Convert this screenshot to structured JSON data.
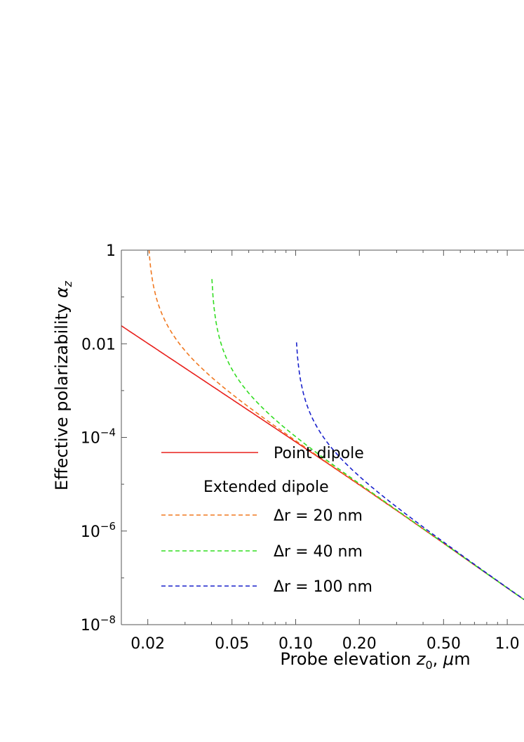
{
  "chart_data": {
    "type": "line",
    "xscale": "log",
    "yscale": "log",
    "xlim": [
      0.015,
      1.2
    ],
    "ylim": [
      1e-08,
      1
    ],
    "xlabel": {
      "prefix": "Probe elevation ",
      "var": "z",
      "sub": "0",
      "mid": ", ",
      "greek": "μ",
      "suffix": "m"
    },
    "ylabel": {
      "prefix": "Effective polarizability ",
      "var": "α",
      "sub": "z"
    },
    "x_ticks": [
      {
        "value": 0.02,
        "label": "0.02"
      },
      {
        "value": 0.05,
        "label": "0.05"
      },
      {
        "value": 0.1,
        "label": "0.10"
      },
      {
        "value": 0.2,
        "label": "0.20"
      },
      {
        "value": 0.5,
        "label": "0.50"
      },
      {
        "value": 1.0,
        "label": "1.0"
      }
    ],
    "y_ticks": [
      {
        "value": 1,
        "base": "1",
        "exp": ""
      },
      {
        "value": 0.01,
        "base": "0.01",
        "exp": ""
      },
      {
        "value": 0.0001,
        "base": "10",
        "exp": "−4"
      },
      {
        "value": 1e-06,
        "base": "10",
        "exp": "−6"
      },
      {
        "value": 1e-08,
        "base": "10",
        "exp": "−8"
      }
    ],
    "legend": {
      "header": "Extended dipole",
      "entries": [
        {
          "label": "Point dipole",
          "series": 0
        },
        {
          "label": "Δr = 20 nm",
          "series": 1
        },
        {
          "label": "Δr = 40 nm",
          "series": 2
        },
        {
          "label": "Δr = 100 nm",
          "series": 3
        }
      ]
    },
    "series": [
      {
        "label": "Point dipole",
        "color": "#e8201c",
        "dash": false,
        "dr": 0
      },
      {
        "label": "Δr = 20 nm",
        "color": "#f07820",
        "dash": true,
        "dr": 0.02
      },
      {
        "label": "Δr = 40 nm",
        "color": "#33dd22",
        "dash": true,
        "dr": 0.04
      },
      {
        "label": "Δr = 100 nm",
        "color": "#1a22cc",
        "dash": true,
        "dr": 0.1
      }
    ]
  }
}
